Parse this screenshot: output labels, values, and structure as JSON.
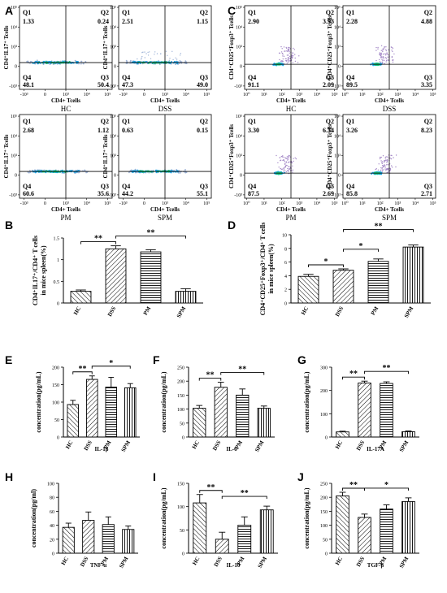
{
  "panel_labels": [
    "A",
    "B",
    "C",
    "D",
    "E",
    "F",
    "G",
    "H",
    "I",
    "J"
  ],
  "chart_data": [
    {
      "id": "A",
      "type": "scatter",
      "xlabel": "CD4+ Tcells",
      "ylabel": "CD4⁺IL17⁺ Tcells",
      "tick_labels": [
        "-10³",
        "0",
        "10³",
        "10⁴",
        "10⁵"
      ],
      "quadrant_labels": [
        "Q1",
        "Q2",
        "Q3",
        "Q4"
      ],
      "plots": [
        {
          "group": "HC",
          "q1": "1.33",
          "q2": "0.24",
          "q3": "50.4",
          "q4": "48.1"
        },
        {
          "group": "DSS",
          "q1": "2.51",
          "q2": "1.15",
          "q3": "49.0",
          "q4": "47.3"
        },
        {
          "group": "PM",
          "q1": "2.68",
          "q2": "1.12",
          "q3": "35.6",
          "q4": "60.6"
        },
        {
          "group": "SPM",
          "q1": "0.63",
          "q2": "0.15",
          "q3": "55.1",
          "q4": "44.2"
        }
      ]
    },
    {
      "id": "C",
      "type": "scatter",
      "xlabel": "CD4+ Tcells",
      "ylabel": "CD4⁺CD25⁺Foxp3⁺ Tcells",
      "tick_labels": [
        "10⁰",
        "10¹",
        "10²",
        "10³",
        "10⁴",
        "10⁵"
      ],
      "y_tick_labels": [
        "-10³",
        "0",
        "10³",
        "10⁴",
        "10⁵"
      ],
      "quadrant_labels": [
        "Q1",
        "Q2",
        "Q3",
        "Q4"
      ],
      "plots": [
        {
          "group": "HC",
          "q1": "2.90",
          "q2": "3.93",
          "q3": "2.09",
          "q4": "91.1"
        },
        {
          "group": "DSS",
          "q1": "2.28",
          "q2": "4.88",
          "q3": "3.35",
          "q4": "89.5"
        },
        {
          "group": "PM",
          "q1": "3.30",
          "q2": "6.34",
          "q3": "2.69",
          "q4": "87.5"
        },
        {
          "group": "SPM",
          "q1": "3.26",
          "q2": "8.23",
          "q3": "2.71",
          "q4": "85.8"
        }
      ]
    },
    {
      "id": "B",
      "type": "bar",
      "categories": [
        "HC",
        "DSS",
        "PM",
        "SPM"
      ],
      "values": [
        0.27,
        1.25,
        1.18,
        0.27
      ],
      "errors": [
        0.03,
        0.07,
        0.05,
        0.06
      ],
      "ylabel": "CD4⁺IL17⁺/CD4⁺ T cells in mice spleen(%)",
      "ylim": [
        0,
        1.5
      ],
      "yticks": [
        0,
        0.5,
        1.0,
        1.5
      ],
      "sig": [
        {
          "from": 0,
          "to": 1,
          "label": "**"
        },
        {
          "from": 1,
          "to": 3,
          "label": "**"
        }
      ]
    },
    {
      "id": "D",
      "type": "bar",
      "categories": [
        "HC",
        "DSS",
        "PM",
        "SPM"
      ],
      "values": [
        3.9,
        4.8,
        6.1,
        8.2
      ],
      "errors": [
        0.3,
        0.2,
        0.35,
        0.3
      ],
      "ylabel": "CD4⁺CD25⁺Foxp3⁺/CD4⁺ T cells in mice spleen(%)",
      "ylim": [
        0,
        10
      ],
      "yticks": [
        0,
        2,
        4,
        6,
        8,
        10
      ],
      "sig": [
        {
          "from": 0,
          "to": 1,
          "label": "*"
        },
        {
          "from": 1,
          "to": 2,
          "label": "*"
        },
        {
          "from": 1,
          "to": 3,
          "label": "**"
        }
      ]
    },
    {
      "id": "E",
      "type": "bar",
      "xlabel": "IL-1β",
      "categories": [
        "HC",
        "DSS",
        "PM",
        "SPM"
      ],
      "values": [
        93,
        165,
        143,
        141
      ],
      "errors": [
        12,
        10,
        28,
        12
      ],
      "ylabel": "concentration(pg/mL)",
      "ylim": [
        0,
        200
      ],
      "yticks": [
        0,
        50,
        100,
        150,
        200
      ],
      "sig": [
        {
          "from": 0,
          "to": 1,
          "label": "**"
        },
        {
          "from": 1,
          "to": 3,
          "label": "*"
        }
      ]
    },
    {
      "id": "F",
      "type": "bar",
      "xlabel": "IL-6",
      "categories": [
        "HC",
        "DSS",
        "PM",
        "SPM"
      ],
      "values": [
        103,
        178,
        150,
        103
      ],
      "errors": [
        10,
        18,
        22,
        8
      ],
      "ylabel": "concentration(pg/mL)",
      "ylim": [
        0,
        250
      ],
      "yticks": [
        0,
        50,
        100,
        150,
        200,
        250
      ],
      "sig": [
        {
          "from": 0,
          "to": 1,
          "label": "**"
        },
        {
          "from": 1,
          "to": 3,
          "label": "**"
        }
      ]
    },
    {
      "id": "G",
      "type": "bar",
      "xlabel": "IL-17A",
      "categories": [
        "HC",
        "DSS",
        "PM",
        "SPM"
      ],
      "values": [
        22,
        232,
        230,
        23
      ],
      "errors": [
        3,
        8,
        7,
        3
      ],
      "ylabel": "concentration(pg/mL)",
      "ylim": [
        0,
        300
      ],
      "yticks": [
        0,
        100,
        200,
        300
      ],
      "sig": [
        {
          "from": 0,
          "to": 1,
          "label": "**"
        },
        {
          "from": 1,
          "to": 3,
          "label": "**"
        }
      ]
    },
    {
      "id": "H",
      "type": "bar",
      "xlabel": "TNF-α",
      "categories": [
        "HC",
        "DSS",
        "PM",
        "SPM"
      ],
      "values": [
        37,
        47,
        41,
        34
      ],
      "errors": [
        6,
        12,
        11,
        5
      ],
      "ylabel": "concentration(pg/ml)",
      "ylim": [
        0,
        100
      ],
      "yticks": [
        0,
        20,
        40,
        60,
        80,
        100
      ],
      "sig": []
    },
    {
      "id": "I",
      "type": "bar",
      "xlabel": "IL-10",
      "categories": [
        "HC",
        "DSS",
        "PM",
        "SPM"
      ],
      "values": [
        108,
        30,
        60,
        93
      ],
      "errors": [
        18,
        15,
        18,
        8
      ],
      "ylabel": "concentration(pg/mL)",
      "ylim": [
        0,
        150
      ],
      "yticks": [
        0,
        50,
        100,
        150
      ],
      "sig": [
        {
          "from": 0,
          "to": 1,
          "label": "**"
        },
        {
          "from": 1,
          "to": 3,
          "label": "**"
        }
      ]
    },
    {
      "id": "J",
      "type": "bar",
      "xlabel": "TGF-β",
      "categories": [
        "HC",
        "DSS",
        "PM",
        "SPM"
      ],
      "values": [
        205,
        128,
        158,
        185
      ],
      "errors": [
        13,
        12,
        15,
        13
      ],
      "ylabel": "concentration(pg/mL)",
      "ylim": [
        0,
        250
      ],
      "yticks": [
        0,
        50,
        100,
        150,
        200,
        250
      ],
      "sig": [
        {
          "from": 0,
          "to": 1,
          "label": "**"
        },
        {
          "from": 1,
          "to": 3,
          "label": "*"
        }
      ]
    }
  ],
  "colors": {
    "axis": "#000000",
    "events_main": "#1fa8e8",
    "events_core": "#18c87a",
    "events_faint": "#9fb4d8",
    "events_purple": "#a58ac8"
  }
}
